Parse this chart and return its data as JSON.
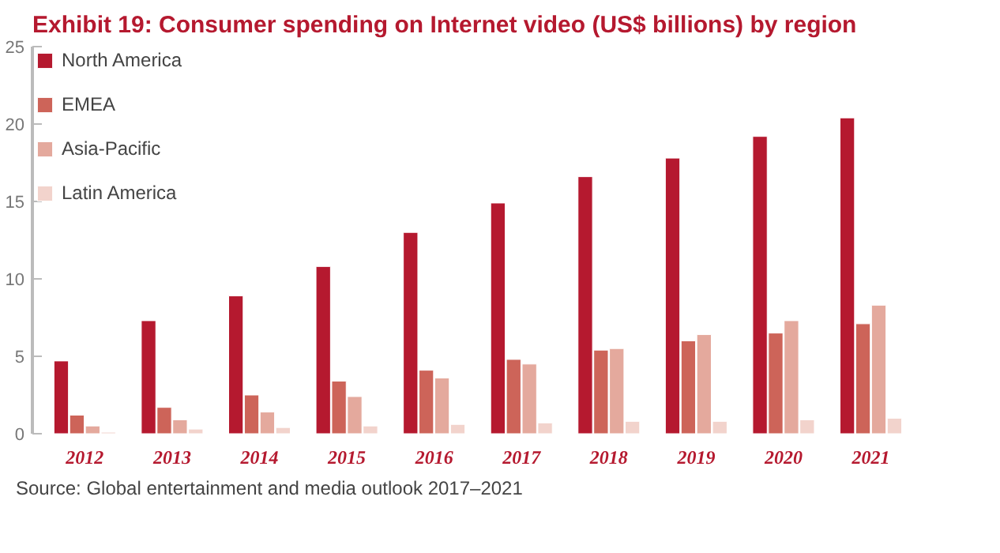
{
  "chart_data": {
    "type": "bar",
    "title": "Exhibit 19: Consumer spending on Internet video (US$ billions) by region",
    "categories": [
      "2012",
      "2013",
      "2014",
      "2015",
      "2016",
      "2017",
      "2018",
      "2019",
      "2020",
      "2021"
    ],
    "series": [
      {
        "name": "North America",
        "color": "#b5192f",
        "values": [
          4.7,
          7.3,
          8.9,
          10.8,
          13.0,
          14.9,
          16.6,
          17.8,
          19.2,
          20.4
        ]
      },
      {
        "name": "EMEA",
        "color": "#cd6459",
        "values": [
          1.2,
          1.7,
          2.5,
          3.4,
          4.1,
          4.8,
          5.4,
          6.0,
          6.5,
          7.1
        ]
      },
      {
        "name": "Asia-Pacific",
        "color": "#e4a99d",
        "values": [
          0.5,
          0.9,
          1.4,
          2.4,
          3.6,
          4.5,
          5.5,
          6.4,
          7.3,
          8.3
        ]
      },
      {
        "name": "Latin America",
        "color": "#f2d3cc",
        "values": [
          0.1,
          0.3,
          0.4,
          0.5,
          0.6,
          0.7,
          0.8,
          0.8,
          0.9,
          1.0
        ]
      }
    ],
    "ylim": [
      0,
      25
    ],
    "yticks": [
      0,
      5,
      10,
      15,
      20,
      25
    ],
    "grid": false,
    "legend": "top left",
    "annotations": [
      "Source: Global entertainment and media outlook 2017–2021"
    ]
  }
}
